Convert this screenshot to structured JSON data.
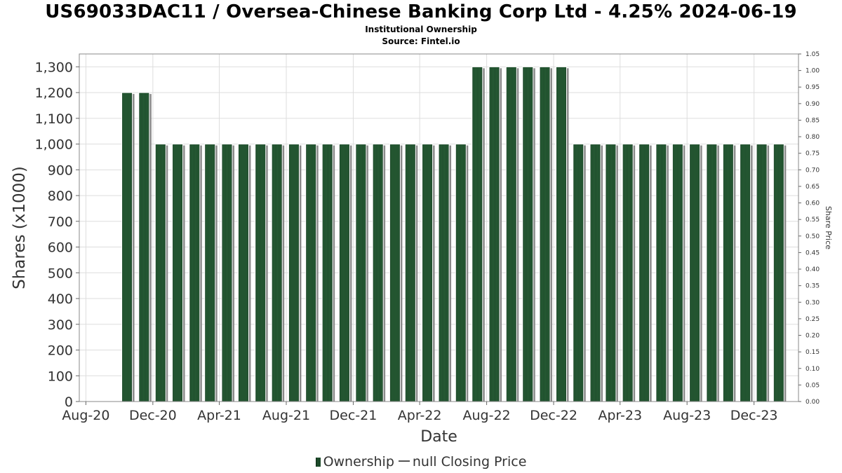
{
  "title": "US69033DAC11 / Oversea-Chinese Banking Corp Ltd - 4.25% 2024-06-19",
  "subtitle": "Institutional Ownership",
  "source": "Source: Fintel.io",
  "legend": {
    "ownership_label": "Ownership",
    "closing_price_label": "null Closing Price"
  },
  "colors": {
    "bar": "#1d4a2a",
    "bar_stripe": "#2f6a3e",
    "bar_shadow": "#8a8a8a",
    "grid": "#dddddd"
  },
  "chart_data": {
    "type": "bar",
    "xlabel": "Date",
    "ylabel": "Shares (x1000)",
    "y2label": "Share Price",
    "ylim": [
      0,
      1350
    ],
    "y2lim": [
      0,
      1.05
    ],
    "xlim": [
      "2020-07-20",
      "2024-02-20"
    ],
    "yticks": [
      0,
      100,
      200,
      300,
      400,
      500,
      600,
      700,
      800,
      900,
      1000,
      1100,
      1200,
      1300
    ],
    "ytick_labels": [
      "0",
      "100",
      "200",
      "300",
      "400",
      "500",
      "600",
      "700",
      "800",
      "900",
      "1,000",
      "1,100",
      "1,200",
      "1,300"
    ],
    "y2ticks": [
      0,
      0.05,
      0.1,
      0.15,
      0.2,
      0.25,
      0.3,
      0.35,
      0.4,
      0.45,
      0.5,
      0.55,
      0.6,
      0.65,
      0.7,
      0.75,
      0.8,
      0.85,
      0.9,
      0.95,
      1.0,
      1.05
    ],
    "y2tick_labels": [
      "0.00",
      "0.05",
      "0.10",
      "0.15",
      "0.20",
      "0.25",
      "0.30",
      "0.35",
      "0.40",
      "0.45",
      "0.50",
      "0.55",
      "0.60",
      "0.65",
      "0.70",
      "0.75",
      "0.80",
      "0.85",
      "0.90",
      "0.95",
      "1.00",
      "1.05"
    ],
    "xticks": [
      {
        "date": "2020-08-01",
        "label": "Aug-20"
      },
      {
        "date": "2020-12-01",
        "label": "Dec-20"
      },
      {
        "date": "2021-04-01",
        "label": "Apr-21"
      },
      {
        "date": "2021-08-01",
        "label": "Aug-21"
      },
      {
        "date": "2021-12-01",
        "label": "Dec-21"
      },
      {
        "date": "2022-04-01",
        "label": "Apr-22"
      },
      {
        "date": "2022-08-01",
        "label": "Aug-22"
      },
      {
        "date": "2022-12-01",
        "label": "Dec-22"
      },
      {
        "date": "2023-04-01",
        "label": "Apr-23"
      },
      {
        "date": "2023-08-01",
        "label": "Aug-23"
      },
      {
        "date": "2023-12-01",
        "label": "Dec-23"
      }
    ],
    "grid": true,
    "legend_position": "bottom",
    "series": [
      {
        "name": "Ownership",
        "points": [
          {
            "date": "2020-10-15",
            "value": 1200
          },
          {
            "date": "2020-11-15",
            "value": 1200
          },
          {
            "date": "2020-12-15",
            "value": 1000
          },
          {
            "date": "2021-01-15",
            "value": 1000
          },
          {
            "date": "2021-02-15",
            "value": 1000
          },
          {
            "date": "2021-03-15",
            "value": 1000
          },
          {
            "date": "2021-04-15",
            "value": 1000
          },
          {
            "date": "2021-05-15",
            "value": 1000
          },
          {
            "date": "2021-06-15",
            "value": 1000
          },
          {
            "date": "2021-07-15",
            "value": 1000
          },
          {
            "date": "2021-08-15",
            "value": 1000
          },
          {
            "date": "2021-09-15",
            "value": 1000
          },
          {
            "date": "2021-10-15",
            "value": 1000
          },
          {
            "date": "2021-11-15",
            "value": 1000
          },
          {
            "date": "2021-12-15",
            "value": 1000
          },
          {
            "date": "2022-01-15",
            "value": 1000
          },
          {
            "date": "2022-02-15",
            "value": 1000
          },
          {
            "date": "2022-03-15",
            "value": 1000
          },
          {
            "date": "2022-04-15",
            "value": 1000
          },
          {
            "date": "2022-05-15",
            "value": 1000
          },
          {
            "date": "2022-06-15",
            "value": 1000
          },
          {
            "date": "2022-07-15",
            "value": 1300
          },
          {
            "date": "2022-08-15",
            "value": 1300
          },
          {
            "date": "2022-09-15",
            "value": 1300
          },
          {
            "date": "2022-10-15",
            "value": 1300
          },
          {
            "date": "2022-11-15",
            "value": 1300
          },
          {
            "date": "2022-12-15",
            "value": 1300
          },
          {
            "date": "2023-01-15",
            "value": 1000
          },
          {
            "date": "2023-02-15",
            "value": 1000
          },
          {
            "date": "2023-03-15",
            "value": 1000
          },
          {
            "date": "2023-04-15",
            "value": 1000
          },
          {
            "date": "2023-05-15",
            "value": 1000
          },
          {
            "date": "2023-06-15",
            "value": 1000
          },
          {
            "date": "2023-07-15",
            "value": 1000
          },
          {
            "date": "2023-08-15",
            "value": 1000
          },
          {
            "date": "2023-09-15",
            "value": 1000
          },
          {
            "date": "2023-10-15",
            "value": 1000
          },
          {
            "date": "2023-11-15",
            "value": 1000
          },
          {
            "date": "2023-12-15",
            "value": 1000
          },
          {
            "date": "2024-01-15",
            "value": 1000
          }
        ]
      }
    ]
  }
}
